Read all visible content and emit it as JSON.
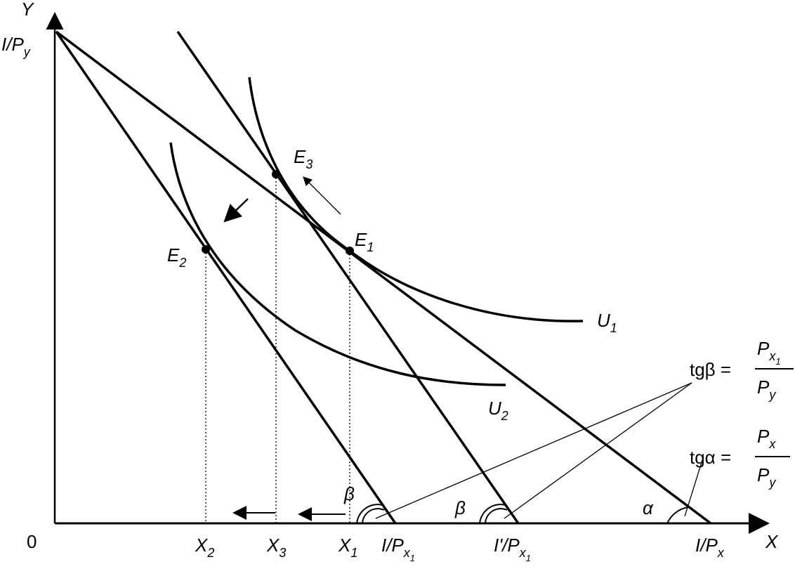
{
  "axes": {
    "y": "Y",
    "x": "X",
    "origin": "0"
  },
  "intercepts": {
    "i_py": {
      "main": "I/P",
      "sub": "y"
    },
    "i_px1": {
      "main": "I/P",
      "sub": "x",
      "subsub": "1"
    },
    "i_prime_px1": {
      "main": "I'/P",
      "sub": "x",
      "subsub": "1"
    },
    "i_px": {
      "main": "I/P",
      "sub": "x"
    }
  },
  "points": {
    "e1": {
      "main": "E",
      "sub": "1"
    },
    "e2": {
      "main": "E",
      "sub": "2"
    },
    "e3": {
      "main": "E",
      "sub": "3"
    }
  },
  "curves": {
    "u1": {
      "main": "U",
      "sub": "1"
    },
    "u2": {
      "main": "U",
      "sub": "2"
    }
  },
  "quantities": {
    "x2": {
      "main": "X",
      "sub": "2"
    },
    "x3": {
      "main": "X",
      "sub": "3"
    },
    "x1": {
      "main": "X",
      "sub": "1"
    }
  },
  "angles": {
    "beta1": "β",
    "beta2": "β",
    "alpha": "α"
  },
  "formulas": {
    "tg_beta": {
      "left": "tgβ =",
      "num": {
        "main": "P",
        "sub": "x",
        "subsub": "1"
      },
      "den": {
        "main": "P",
        "sub": "y"
      }
    },
    "tg_alpha": {
      "left": "tgα =",
      "num": {
        "main": "P",
        "sub": "x"
      },
      "den": {
        "main": "P",
        "sub": "y"
      }
    }
  }
}
